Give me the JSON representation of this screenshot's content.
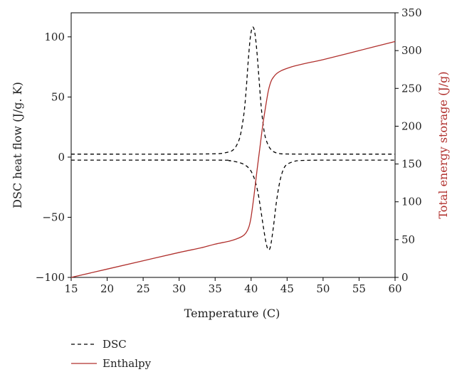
{
  "chart_data": {
    "type": "line",
    "xlabel": "Temperature (C)",
    "ylabel": "DSC heat flow (J/g. K)",
    "y2label": "Total energy storage (J/g)",
    "xlim": [
      15,
      60
    ],
    "ylim": [
      -100,
      120
    ],
    "y2lim": [
      0,
      350
    ],
    "xticks": [
      15,
      20,
      25,
      30,
      35,
      40,
      45,
      50,
      55,
      60
    ],
    "yticks": [
      -100,
      -50,
      0,
      50,
      100
    ],
    "y2ticks": [
      0,
      50,
      100,
      150,
      200,
      250,
      300,
      350
    ],
    "ytick_labels": [
      "−100",
      "−50",
      "0",
      "50",
      "100"
    ],
    "series": [
      {
        "name": "DSC",
        "axis": "left",
        "style": "dashed",
        "color": "#000000",
        "x": [
          15,
          30,
          35,
          36,
          37,
          37.5,
          38,
          38.5,
          39,
          39.3,
          39.6,
          39.9,
          40.2,
          40.5,
          40.8,
          41.1,
          41.4,
          41.7,
          42,
          42.5,
          43,
          43.5,
          44,
          45,
          50,
          60
        ],
        "y": [
          2.5,
          2.5,
          2.8,
          3.2,
          4.5,
          6,
          10,
          18,
          36,
          55,
          80,
          100,
          108,
          104,
          88,
          65,
          42,
          26,
          16,
          8.5,
          5,
          3.5,
          2.9,
          2.6,
          2.5,
          2.5
        ]
      },
      {
        "name": "DSC",
        "axis": "left",
        "style": "dashed",
        "color": "#000000",
        "x": [
          15,
          35,
          37,
          38,
          39,
          39.8,
          40.4,
          40.9,
          41.3,
          41.7,
          42.1,
          42.4,
          42.7,
          43.1,
          43.5,
          44,
          44.5,
          45,
          46,
          47,
          50,
          60
        ],
        "y": [
          -2.5,
          -2.5,
          -3,
          -4,
          -6,
          -10,
          -17,
          -28,
          -42,
          -58,
          -72,
          -77,
          -74,
          -58,
          -38,
          -20,
          -10,
          -6,
          -3.5,
          -2.8,
          -2.5,
          -2.5
        ]
      },
      {
        "name": "Enthalpy",
        "axis": "right",
        "style": "solid",
        "color": "#b0302d",
        "x": [
          15,
          20,
          25,
          30,
          33,
          35,
          37,
          38,
          38.8,
          39.3,
          39.7,
          40,
          40.4,
          40.8,
          41.2,
          41.6,
          42,
          42.4,
          42.8,
          43.2,
          43.6,
          44.2,
          45,
          46,
          48,
          50,
          55,
          60
        ],
        "y": [
          0,
          11,
          22,
          33,
          39,
          44,
          48,
          51,
          54.5,
          59,
          67,
          80,
          108,
          140,
          170,
          200,
          225,
          247,
          260,
          266,
          270,
          273.5,
          276.5,
          279.5,
          284,
          288,
          300,
          312
        ]
      }
    ]
  },
  "legend": {
    "items": [
      {
        "label": "DSC",
        "style": "dashed",
        "color": "#000000"
      },
      {
        "label": "Enthalpy",
        "style": "solid",
        "color": "#b0302d"
      }
    ]
  }
}
